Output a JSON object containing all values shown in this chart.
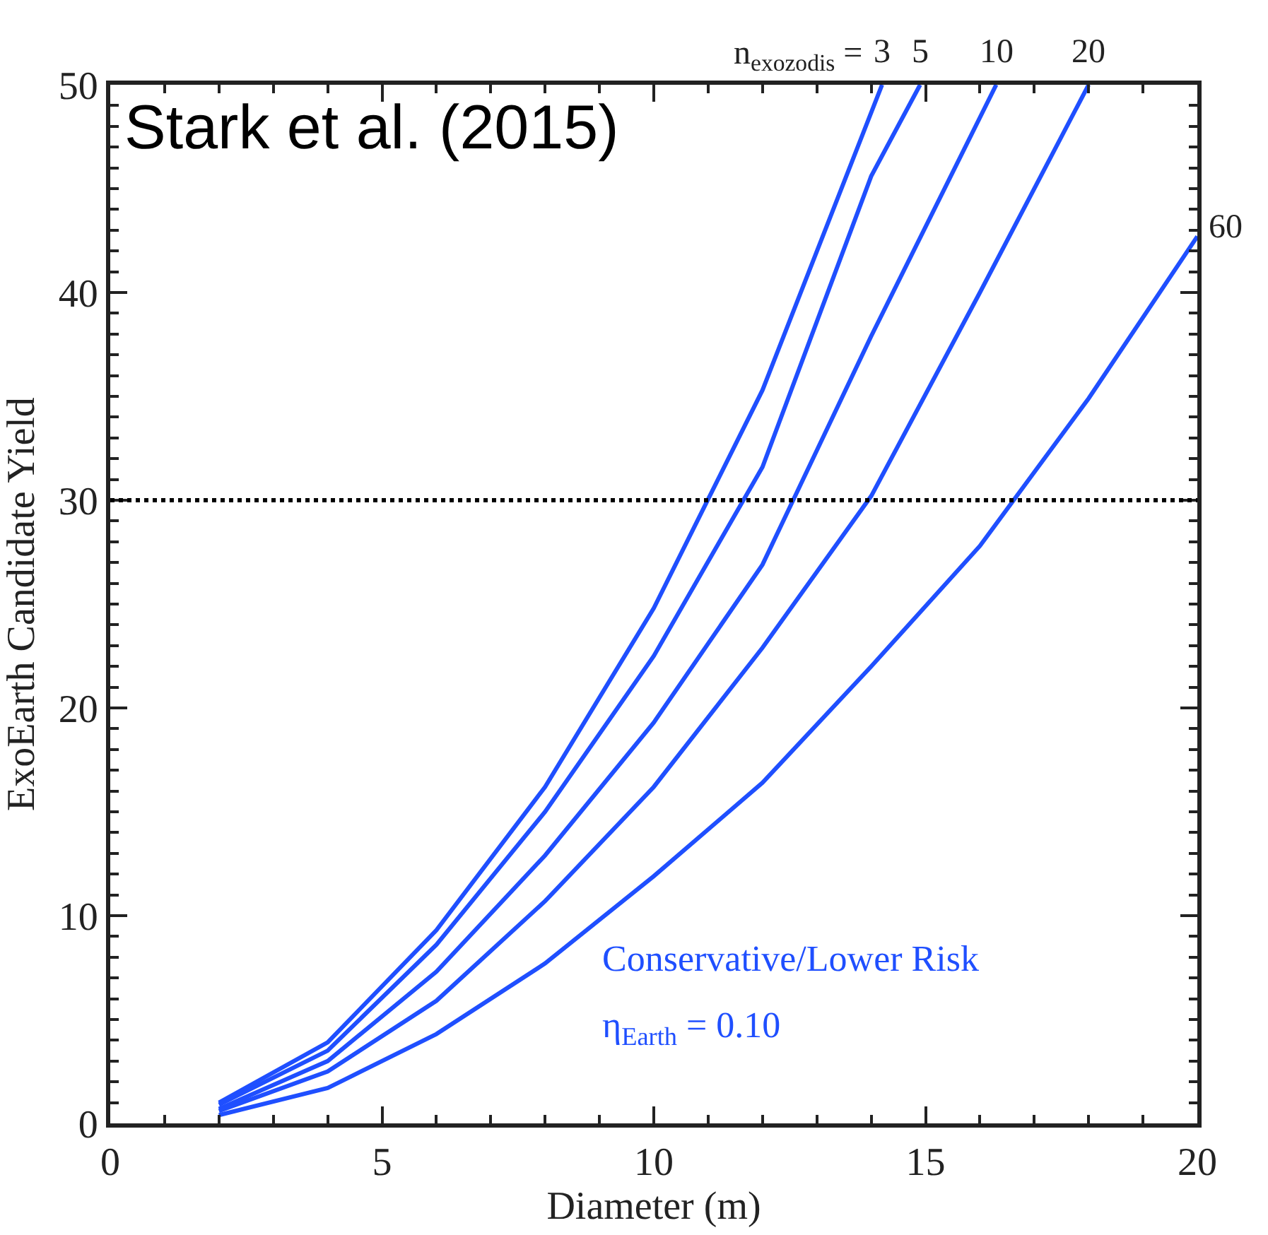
{
  "chart_data": {
    "type": "line",
    "xlabel": "Diameter (m)",
    "ylabel": "ExoEarth Candidate Yield",
    "xlim": [
      0,
      20
    ],
    "ylim": [
      0,
      50
    ],
    "xticks": [
      0,
      5,
      10,
      15,
      20
    ],
    "yticks": [
      0,
      10,
      20,
      30,
      40,
      50
    ],
    "legend": false,
    "marker": "none",
    "line_style": "solid",
    "series": [
      {
        "name": "3",
        "color": "#1f4fff",
        "x": [
          2,
          4,
          6,
          8,
          10,
          12,
          14.2
        ],
        "values": [
          1.0,
          3.9,
          9.3,
          16.2,
          24.8,
          35.3,
          50
        ]
      },
      {
        "name": "5",
        "color": "#1f4fff",
        "x": [
          2,
          4,
          6,
          8,
          10,
          12,
          14,
          14.9
        ],
        "values": [
          0.9,
          3.5,
          8.6,
          15.0,
          22.5,
          31.6,
          45.6,
          50
        ]
      },
      {
        "name": "10",
        "color": "#1f4fff",
        "x": [
          2,
          4,
          6,
          8,
          10,
          12,
          14,
          16.3
        ],
        "values": [
          0.7,
          3.0,
          7.3,
          12.9,
          19.3,
          26.9,
          37.9,
          50
        ]
      },
      {
        "name": "20",
        "color": "#1f4fff",
        "x": [
          2,
          4,
          6,
          8,
          10,
          12,
          14,
          16,
          18
        ],
        "values": [
          0.6,
          2.5,
          5.9,
          10.7,
          16.2,
          22.9,
          30.2,
          40.0,
          50
        ]
      },
      {
        "name": "60",
        "color": "#1f4fff",
        "x": [
          2,
          4,
          6,
          8,
          10,
          12,
          14,
          16,
          18,
          20
        ],
        "values": [
          0.4,
          1.7,
          4.3,
          7.7,
          11.9,
          16.4,
          22.0,
          27.8,
          34.9,
          42.7
        ]
      }
    ],
    "ref_lines": [
      {
        "axis": "y",
        "value": 30,
        "color": "#000000",
        "line_style": "dotted"
      }
    ],
    "annotations": [
      "Stark et al. (2015)",
      "n$_{exozodis}$ =",
      "Conservative/Lower Risk",
      "η$_{Earth}$ = 0.10"
    ]
  }
}
